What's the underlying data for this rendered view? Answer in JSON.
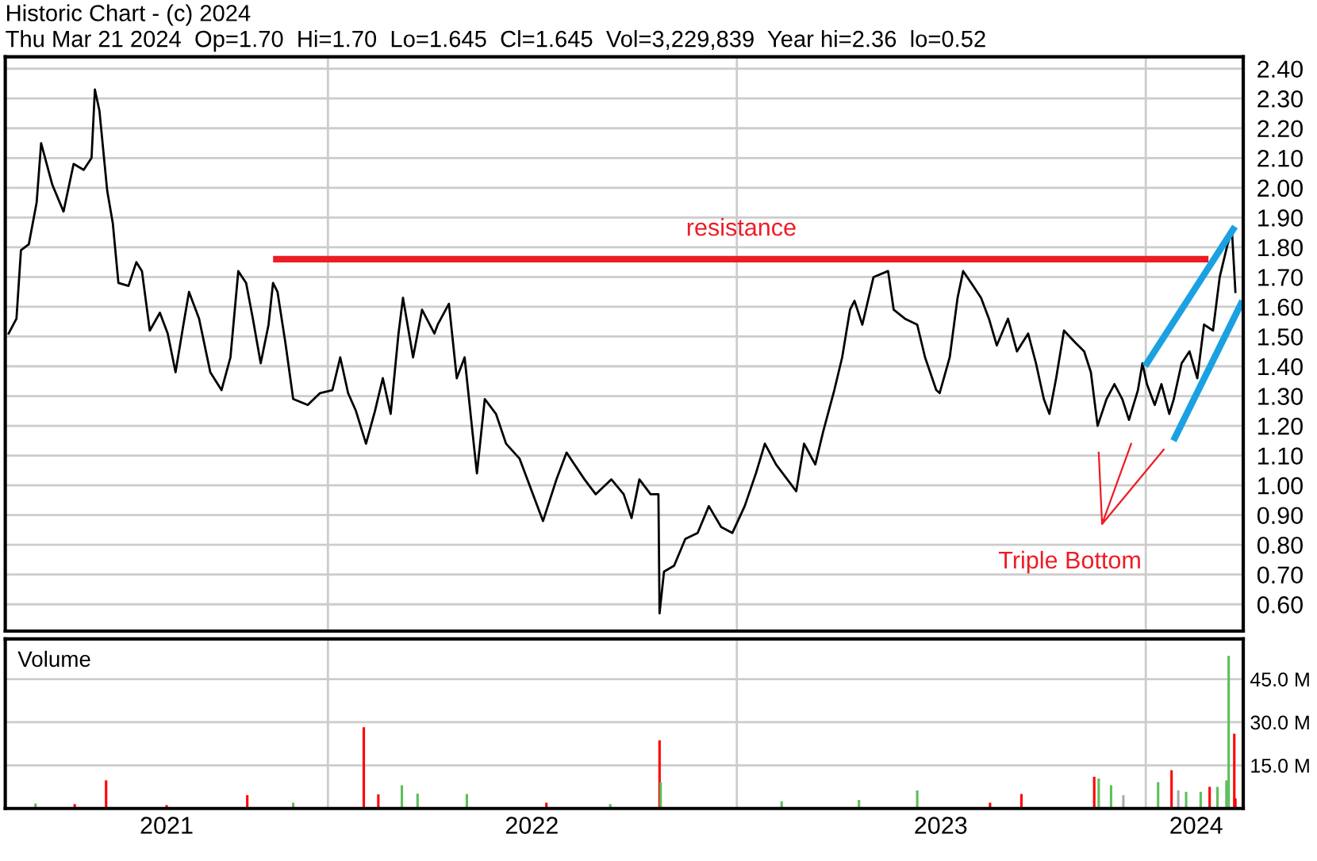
{
  "chart_data": [
    {
      "type": "line",
      "title": "Historic Chart - (c) 2024",
      "subtitle": "Thu Mar 21 2024  Op=1.70  Hi=1.70  Lo=1.645  Cl=1.645  Vol=3,229,839  Year hi=2.36  lo=0.52",
      "xlim": [
        "2021-03-19",
        "2024-03-28"
      ],
      "ylim": [
        0.51,
        2.44
      ],
      "yticks": [
        {
          "value": 0.6,
          "label": "0.60"
        },
        {
          "value": 0.7,
          "label": "0.70"
        },
        {
          "value": 0.8,
          "label": "0.80"
        },
        {
          "value": 0.9,
          "label": "0.90"
        },
        {
          "value": 1.0,
          "label": "1.00"
        },
        {
          "value": 1.1,
          "label": "1.10"
        },
        {
          "value": 1.2,
          "label": "1.20"
        },
        {
          "value": 1.3,
          "label": "1.30"
        },
        {
          "value": 1.4,
          "label": "1.40"
        },
        {
          "value": 1.5,
          "label": "1.50"
        },
        {
          "value": 1.6,
          "label": "1.60"
        },
        {
          "value": 1.7,
          "label": "1.70"
        },
        {
          "value": 1.8,
          "label": "1.80"
        },
        {
          "value": 1.9,
          "label": "1.90"
        },
        {
          "value": 2.0,
          "label": "2.00"
        },
        {
          "value": 2.1,
          "label": "2.10"
        },
        {
          "value": 2.2,
          "label": "2.20"
        },
        {
          "value": 2.3,
          "label": "2.30"
        },
        {
          "value": 2.4,
          "label": "2.40"
        }
      ],
      "tick_labels": "y",
      "grid": "y",
      "legend": false,
      "ref_lines": [
        {
          "axis": "x",
          "value": "2022-01-01",
          "color": "#cccccc"
        },
        {
          "axis": "x",
          "value": "2023-01-01",
          "color": "#cccccc"
        },
        {
          "axis": "x",
          "value": "2024-01-01",
          "color": "#cccccc"
        }
      ],
      "annotations": [
        {
          "text": "resistance",
          "x": "2023-01-05",
          "y": 1.86
        },
        "Triple Bottom"
      ],
      "series": [
        {
          "color": "#000000",
          "x": [
            "2021-03-22",
            "2021-03-29",
            "2021-04-02",
            "2021-04-09",
            "2021-04-16",
            "2021-04-20",
            "2021-04-30",
            "2021-05-10",
            "2021-05-19",
            "2021-05-28",
            "2021-06-04",
            "2021-06-07",
            "2021-06-11",
            "2021-06-18",
            "2021-06-23",
            "2021-06-28",
            "2021-07-07",
            "2021-07-14",
            "2021-07-19",
            "2021-07-26",
            "2021-08-04",
            "2021-08-11",
            "2021-08-18",
            "2021-08-25",
            "2021-08-30",
            "2021-09-08",
            "2021-09-18",
            "2021-09-28",
            "2021-10-06",
            "2021-10-13",
            "2021-10-20",
            "2021-10-26",
            "2021-11-02",
            "2021-11-09",
            "2021-11-13",
            "2021-11-17",
            "2021-11-24",
            "2021-12-01",
            "2021-12-14",
            "2021-12-25",
            "2022-01-05",
            "2022-01-12",
            "2022-01-19",
            "2022-01-26",
            "2022-02-04",
            "2022-02-12",
            "2022-02-19",
            "2022-02-26",
            "2022-03-05",
            "2022-03-09",
            "2022-03-18",
            "2022-03-26",
            "2022-04-06",
            "2022-04-09",
            "2022-04-19",
            "2022-04-26",
            "2022-05-03",
            "2022-05-10",
            "2022-05-14",
            "2022-05-21",
            "2022-05-31",
            "2022-06-09",
            "2022-06-21",
            "2022-07-05",
            "2022-07-12",
            "2022-07-24",
            "2022-08-02",
            "2022-08-09",
            "2022-08-18",
            "2022-08-28",
            "2022-09-11",
            "2022-09-22",
            "2022-09-29",
            "2022-10-06",
            "2022-10-16",
            "2022-10-23",
            "2022-10-24",
            "2022-10-28",
            "2022-11-06",
            "2022-11-16",
            "2022-11-27",
            "2022-12-07",
            "2022-12-18",
            "2022-12-28",
            "2023-01-08",
            "2023-01-18",
            "2023-01-26",
            "2023-02-05",
            "2023-02-15",
            "2023-02-23",
            "2023-03-02",
            "2023-03-12",
            "2023-03-19",
            "2023-03-29",
            "2023-04-05",
            "2023-04-12",
            "2023-04-16",
            "2023-04-23",
            "2023-05-03",
            "2023-05-16",
            "2023-05-21",
            "2023-05-31",
            "2023-06-11",
            "2023-06-18",
            "2023-06-28",
            "2023-07-01",
            "2023-07-10",
            "2023-07-17",
            "2023-07-22",
            "2023-07-31",
            "2023-08-07",
            "2023-08-14",
            "2023-08-21",
            "2023-08-31",
            "2023-09-08",
            "2023-09-18",
            "2023-09-25",
            "2023-10-02",
            "2023-10-07",
            "2023-10-13",
            "2023-10-20",
            "2023-10-30",
            "2023-11-07",
            "2023-11-13",
            "2023-11-19",
            "2023-11-27",
            "2023-12-04",
            "2023-12-11",
            "2023-12-17",
            "2023-12-25",
            "2023-12-29",
            "2024-01-02",
            "2024-01-09",
            "2024-01-15",
            "2024-01-22",
            "2024-01-26",
            "2024-02-02",
            "2024-02-09",
            "2024-02-16",
            "2024-02-22",
            "2024-03-01",
            "2024-03-07",
            "2024-03-14",
            "2024-03-18",
            "2024-03-21"
          ],
          "values": [
            1.51,
            1.56,
            1.79,
            1.81,
            1.95,
            2.15,
            2.01,
            1.92,
            2.08,
            2.06,
            2.1,
            2.33,
            2.26,
            1.99,
            1.88,
            1.68,
            1.67,
            1.75,
            1.72,
            1.52,
            1.58,
            1.51,
            1.38,
            1.54,
            1.65,
            1.56,
            1.38,
            1.32,
            1.43,
            1.72,
            1.68,
            1.56,
            1.41,
            1.54,
            1.68,
            1.65,
            1.48,
            1.29,
            1.27,
            1.31,
            1.32,
            1.43,
            1.31,
            1.25,
            1.14,
            1.25,
            1.36,
            1.24,
            1.51,
            1.63,
            1.43,
            1.59,
            1.51,
            1.54,
            1.61,
            1.36,
            1.43,
            1.18,
            1.04,
            1.29,
            1.24,
            1.14,
            1.09,
            0.95,
            0.88,
            1.02,
            1.11,
            1.07,
            1.02,
            0.97,
            1.02,
            0.97,
            0.89,
            1.02,
            0.97,
            0.97,
            0.57,
            0.71,
            0.73,
            0.82,
            0.84,
            0.93,
            0.86,
            0.84,
            0.93,
            1.04,
            1.14,
            1.07,
            1.02,
            0.98,
            1.14,
            1.07,
            1.18,
            1.32,
            1.43,
            1.59,
            1.62,
            1.54,
            1.7,
            1.72,
            1.59,
            1.56,
            1.54,
            1.43,
            1.32,
            1.31,
            1.43,
            1.63,
            1.72,
            1.67,
            1.63,
            1.56,
            1.47,
            1.56,
            1.45,
            1.51,
            1.41,
            1.29,
            1.24,
            1.36,
            1.52,
            1.48,
            1.45,
            1.38,
            1.2,
            1.29,
            1.34,
            1.29,
            1.22,
            1.32,
            1.41,
            1.34,
            1.27,
            1.34,
            1.24,
            1.29,
            1.41,
            1.45,
            1.36,
            1.54,
            1.52,
            1.7,
            1.81,
            1.85,
            1.65
          ]
        },
        {
          "color": "#ee1c25",
          "x": [
            "2021-11-16",
            "2024-02-23"
          ],
          "values": [
            1.76,
            1.76
          ]
        },
        {
          "color": "#1ba1e2",
          "x": [
            "2024-01-02",
            "2024-03-19"
          ],
          "values": [
            1.41,
            1.86
          ]
        },
        {
          "color": "#1ba1e2",
          "x": [
            "2024-01-27",
            "2024-03-26"
          ],
          "values": [
            1.16,
            1.61
          ]
        },
        {
          "color": "#ee1c25",
          "x": [
            "2023-11-20",
            "2023-11-23",
            "2023-12-19",
            "2023-11-23",
            "2024-01-17"
          ],
          "values": [
            1.11,
            0.87,
            1.14,
            0.87,
            1.12
          ]
        }
      ]
    },
    {
      "type": "bar",
      "title": "Volume",
      "xlim": [
        "2021-03-19",
        "2024-03-28"
      ],
      "ylim": [
        0,
        59
      ],
      "yticks": [
        {
          "value": 15,
          "label": "15.0 M"
        },
        {
          "value": 30,
          "label": "30.0 M"
        },
        {
          "value": 45,
          "label": "45.0 M"
        }
      ],
      "xticks": [
        {
          "value": "2021-08-10",
          "label": "2021"
        },
        {
          "value": "2022-07-02",
          "label": "2022"
        },
        {
          "value": "2023-07-02",
          "label": "2023"
        },
        {
          "value": "2024-02-15",
          "label": "2024"
        }
      ],
      "grid": "y",
      "legend": false,
      "ref_lines": [
        {
          "axis": "x",
          "value": "2022-01-01",
          "color": "#cccccc"
        },
        {
          "axis": "x",
          "value": "2023-01-01",
          "color": "#cccccc"
        },
        {
          "axis": "x",
          "value": "2024-01-01",
          "color": "#cccccc"
        }
      ],
      "x": [
        "2021-04-15",
        "2021-05-20",
        "2021-06-17",
        "2021-08-10",
        "2021-10-21",
        "2021-12-01",
        "2022-02-02",
        "2022-02-15",
        "2022-03-08",
        "2022-03-22",
        "2022-05-05",
        "2022-07-15",
        "2022-09-10",
        "2022-10-24",
        "2022-10-25",
        "2023-02-10",
        "2023-04-20",
        "2023-06-11",
        "2023-08-15",
        "2023-09-12",
        "2023-11-16",
        "2023-11-20",
        "2023-12-01",
        "2023-12-12",
        "2024-01-12",
        "2024-01-24",
        "2024-01-30",
        "2024-02-06",
        "2024-02-19",
        "2024-02-27",
        "2024-03-05",
        "2024-03-13",
        "2024-03-15",
        "2024-03-20",
        "2024-03-21"
      ],
      "values": [
        1.7,
        1.5,
        9.8,
        1.2,
        4.6,
        2.0,
        28.3,
        4.9,
        8.1,
        5.2,
        5.0,
        2.0,
        1.5,
        23.7,
        9.2,
        2.5,
        3.0,
        6.3,
        2.0,
        5.0,
        11.0,
        10.4,
        8.1,
        4.6,
        9.2,
        13.3,
        6.3,
        5.8,
        5.8,
        7.5,
        7.5,
        9.8,
        53.1,
        26.0,
        3.5
      ],
      "colors": [
        "#5cbf5c",
        "#ff0000",
        "#ff0000",
        "#ff0000",
        "#ff0000",
        "#5cbf5c",
        "#ff0000",
        "#ff0000",
        "#5cbf5c",
        "#5cbf5c",
        "#5cbf5c",
        "#ff0000",
        "#5cbf5c",
        "#ff0000",
        "#5cbf5c",
        "#5cbf5c",
        "#5cbf5c",
        "#5cbf5c",
        "#ff0000",
        "#ff0000",
        "#ff0000",
        "#5cbf5c",
        "#5cbf5c",
        "#aaaaaa",
        "#5cbf5c",
        "#ff0000",
        "#aaaaaa",
        "#5cbf5c",
        "#5cbf5c",
        "#ff0000",
        "#5cbf5c",
        "#5cbf5c",
        "#5cbf5c",
        "#ff0000",
        "#ff0000"
      ]
    }
  ]
}
